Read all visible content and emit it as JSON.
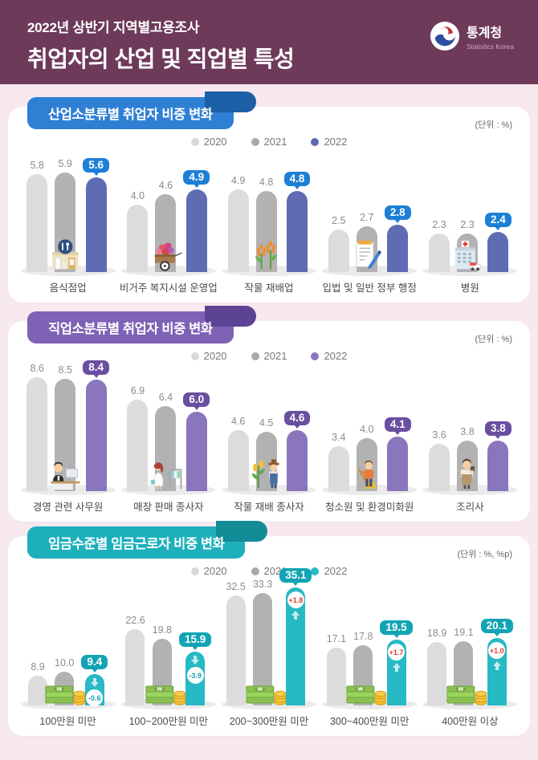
{
  "header": {
    "subtitle": "2022년 상반기 지역별고용조사",
    "title": "취업자의 산업 및 직업별 특성",
    "logo": {
      "name": "통계청",
      "subname": "Statistics Korea"
    }
  },
  "chart_data": [
    {
      "type": "bar",
      "title": "산업소분류별 취업자 비중 변화",
      "unit": "(단위 : %)",
      "legend": [
        "2020",
        "2021",
        "2022"
      ],
      "legend_position": "top-center",
      "grid": false,
      "categories": [
        "음식점업",
        "비거주 복지시설 운영업",
        "작물 재배업",
        "입법 및 일반 정부 행정",
        "병원"
      ],
      "icons": [
        "restaurant-icon",
        "flower-cart-icon",
        "crop-icon",
        "document-pen-icon",
        "hospital-icon"
      ],
      "series": [
        {
          "name": "2020",
          "values": [
            5.8,
            4.0,
            4.9,
            2.5,
            2.3
          ]
        },
        {
          "name": "2021",
          "values": [
            5.9,
            4.6,
            4.8,
            2.7,
            2.3
          ]
        },
        {
          "name": "2022",
          "values": [
            5.6,
            4.9,
            4.8,
            2.8,
            2.4
          ]
        }
      ],
      "colors": {
        "y2020": "#dcdcdc",
        "y2021": "#b2b2b2",
        "bar2022": "#5f6cb3",
        "badge": "#1d7fd6",
        "ribbon": "#2f80d4",
        "ribbon_dark": "#1d5fa6"
      }
    },
    {
      "type": "bar",
      "title": "직업소분류별 취업자 비중 변화",
      "unit": "(단위 : %)",
      "legend": [
        "2020",
        "2021",
        "2022"
      ],
      "legend_position": "top-center",
      "grid": false,
      "categories": [
        "경영 관련 사무원",
        "매장 판매 종사자",
        "작물 재배 종사자",
        "청소원 및 환경미화원",
        "조리사"
      ],
      "icons": [
        "office-worker-icon",
        "store-seller-icon",
        "farmer-icon",
        "cleaner-icon",
        "cook-icon"
      ],
      "series": [
        {
          "name": "2020",
          "values": [
            8.6,
            6.9,
            4.6,
            3.4,
            3.6
          ]
        },
        {
          "name": "2021",
          "values": [
            8.5,
            6.4,
            4.5,
            4.0,
            3.8
          ]
        },
        {
          "name": "2022",
          "values": [
            8.4,
            6.0,
            4.6,
            4.1,
            3.8
          ]
        }
      ],
      "colors": {
        "y2020": "#dcdcdc",
        "y2021": "#b2b2b2",
        "bar2022": "#8a76bd",
        "badge": "#6a4fa0",
        "ribbon": "#7e62b5",
        "ribbon_dark": "#5c4394"
      }
    },
    {
      "type": "bar",
      "title": "임금수준별 임금근로자 비중 변화",
      "unit": "(단위 : %, %p)",
      "legend": [
        "2020",
        "2021",
        "2022"
      ],
      "legend_position": "top-center",
      "grid": false,
      "categories": [
        "100만원 미만",
        "100~200만원 미만",
        "200~300만원 미만",
        "300~400만원 미만",
        "400만원 이상"
      ],
      "icons": [
        "money-icon",
        "money-icon",
        "money-icon",
        "money-icon",
        "money-icon"
      ],
      "series": [
        {
          "name": "2020",
          "values": [
            8.9,
            22.6,
            32.5,
            17.1,
            18.9
          ]
        },
        {
          "name": "2021",
          "values": [
            10.0,
            19.8,
            33.3,
            17.8,
            19.1
          ]
        },
        {
          "name": "2022",
          "values": [
            9.4,
            15.9,
            35.1,
            19.5,
            20.1
          ]
        }
      ],
      "changes": [
        "-0.6",
        "-3.9",
        "+1.8",
        "+1.7",
        "+1.0"
      ],
      "colors": {
        "y2020": "#dcdcdc",
        "y2021": "#b2b2b2",
        "bar2022": "#27b9c4",
        "badge": "#12a4b4",
        "ribbon": "#1db0bb",
        "ribbon_dark": "#128c96",
        "change_positive": "#e03c31",
        "change_negative": "#17a2b2"
      }
    }
  ]
}
